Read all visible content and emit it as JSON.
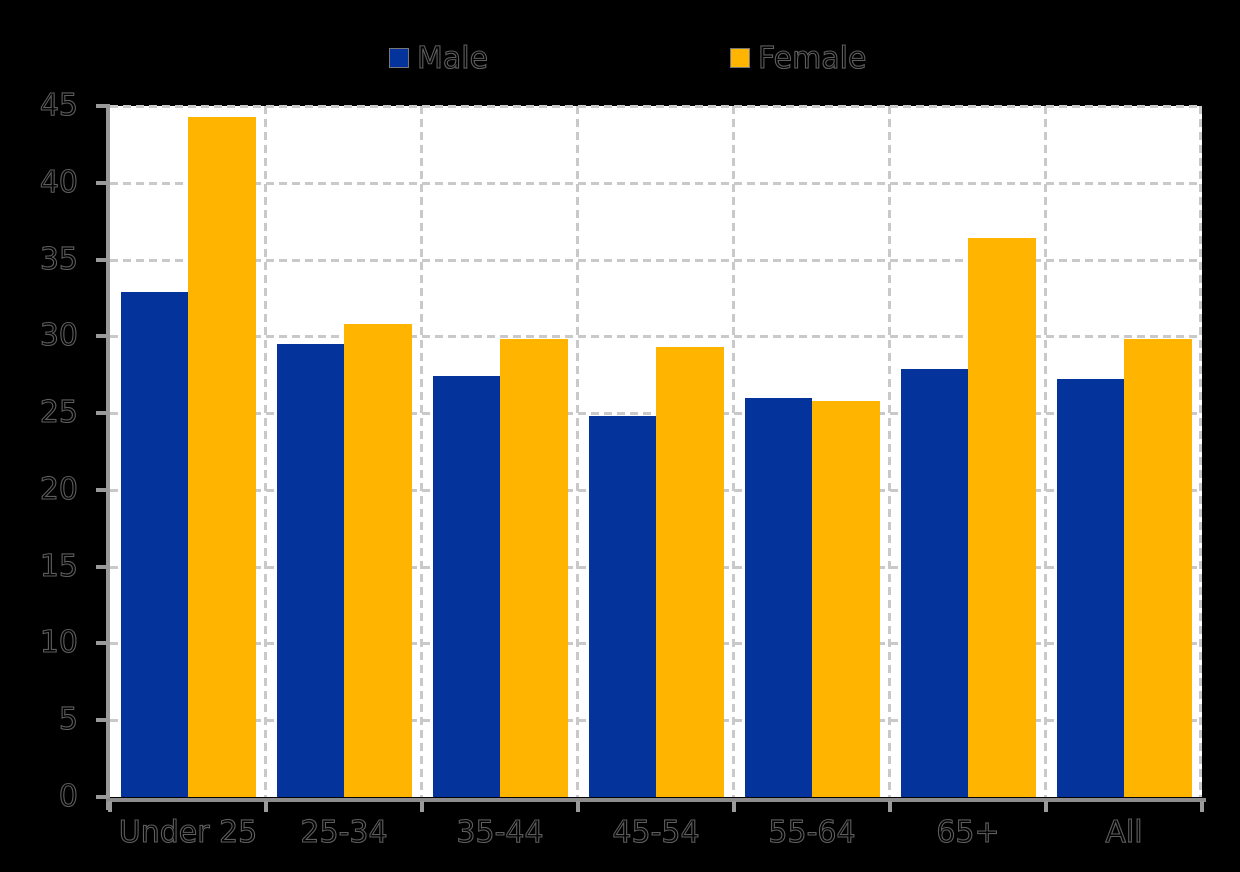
{
  "chart_data": {
    "type": "bar",
    "title": "",
    "xlabel": "",
    "ylabel": "",
    "categories": [
      "Under 25",
      "25-34",
      "35-44",
      "45-54",
      "55-64",
      "65+",
      "All"
    ],
    "series": [
      {
        "name": "Male",
        "color": "#03339B",
        "values": [
          32.9,
          29.5,
          27.4,
          24.8,
          26.0,
          27.9,
          27.2
        ]
      },
      {
        "name": "Female",
        "color": "#FFB400",
        "values": [
          44.3,
          30.8,
          29.8,
          29.3,
          25.8,
          36.4,
          29.8
        ]
      }
    ],
    "ylim": [
      0,
      45
    ],
    "ytick_labels": [
      "0",
      "5",
      "10",
      "15",
      "20",
      "25",
      "30",
      "35",
      "40",
      "45"
    ],
    "grid": "dashed",
    "legend_position": "top",
    "colors": {
      "page_background": "#000000",
      "plot_background": "#FFFFFF",
      "gridline": "#C9C9C9",
      "axis": "#9A9A9A",
      "text": "#000000"
    }
  }
}
